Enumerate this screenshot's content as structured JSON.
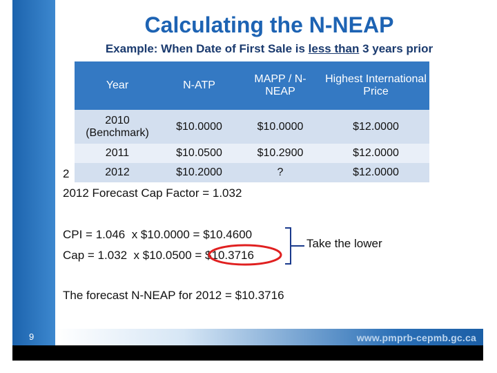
{
  "slide": {
    "title": "Calculating the N-NEAP",
    "subtitle_pre": "Example: When Date of First Sale is ",
    "subtitle_underlined": "less than",
    "subtitle_post": " 3 years prior",
    "page_number": "9",
    "footer_url": "www.pmprb-cepmb.gc.ca"
  },
  "table": {
    "headers": [
      "Year",
      "N-ATP",
      "MAPP / N-NEAP",
      "Highest International Price"
    ],
    "rows": [
      [
        "2010 (Benchmark)",
        "$10.0000",
        "$10.0000",
        "$12.0000"
      ],
      [
        "2011",
        "$10.0500",
        "$10.2900",
        "$12.0000"
      ],
      [
        "2012",
        "$10.2000",
        "?",
        "$12.0000"
      ]
    ]
  },
  "stray_text": "2",
  "forecast_cap": "2012 Forecast Cap Factor = 1.032",
  "calc": {
    "line1": "CPI = 1.046  x $10.0000 = $10.4600",
    "line2": "Cap = 1.032  x $10.0500 = $10.3716",
    "note": "Take the lower"
  },
  "conclusion": "The forecast N-NEAP for 2012 = $10.3716",
  "colors": {
    "title": "#1d63b3",
    "header_bg": "#3479c3",
    "row_dark": "#d3dfef",
    "row_light": "#e9eff8",
    "highlight_circle": "#e02020"
  }
}
